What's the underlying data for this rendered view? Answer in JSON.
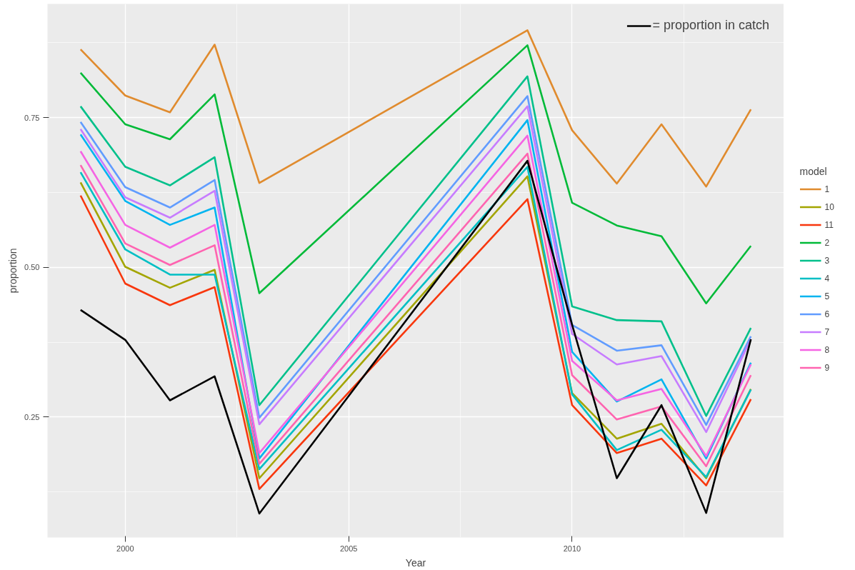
{
  "chart_data": {
    "type": "line",
    "xlabel": "Year",
    "ylabel": "proportion",
    "legend_title": "model",
    "x": [
      1999,
      2000,
      2001,
      2002,
      2003,
      2009,
      2010,
      2011,
      2012,
      2013,
      2014
    ],
    "xlim": [
      1998.26,
      2014.74
    ],
    "xticks": [
      2000,
      2005,
      2010
    ],
    "ylim": [
      0.049,
      0.94
    ],
    "yticks": [
      {
        "value": 0.25,
        "label": "0.25"
      },
      {
        "value": 0.5,
        "label": "0.50"
      },
      {
        "value": 0.75,
        "label": "0.75"
      }
    ],
    "annotations": [
      "= proportion in catch"
    ],
    "grid": true,
    "legend": "right",
    "marker": "none",
    "line_style": "solid",
    "series": [
      {
        "name": "1",
        "color": "#e08b2e",
        "values": [
          0.864,
          0.787,
          0.759,
          0.872,
          0.641,
          0.896,
          0.729,
          0.64,
          0.739,
          0.635,
          0.764
        ]
      },
      {
        "name": "10",
        "color": "#a3a500",
        "values": [
          0.642,
          0.501,
          0.466,
          0.496,
          0.148,
          0.652,
          0.29,
          0.214,
          0.239,
          0.148,
          0.297
        ]
      },
      {
        "name": "11",
        "color": "#f8370d",
        "values": [
          0.62,
          0.473,
          0.437,
          0.467,
          0.13,
          0.614,
          0.27,
          0.19,
          0.214,
          0.136,
          0.28
        ]
      },
      {
        "name": "2",
        "color": "#00ba38",
        "values": [
          0.825,
          0.739,
          0.714,
          0.789,
          0.457,
          0.871,
          0.608,
          0.57,
          0.552,
          0.44,
          0.536
        ]
      },
      {
        "name": "3",
        "color": "#00c08b",
        "values": [
          0.769,
          0.668,
          0.637,
          0.684,
          0.27,
          0.819,
          0.435,
          0.412,
          0.41,
          0.252,
          0.399
        ]
      },
      {
        "name": "4",
        "color": "#00bfc4",
        "values": [
          0.659,
          0.53,
          0.488,
          0.488,
          0.163,
          0.668,
          0.288,
          0.195,
          0.229,
          0.15,
          0.296
        ]
      },
      {
        "name": "5",
        "color": "#00b4f0",
        "values": [
          0.722,
          0.611,
          0.571,
          0.6,
          0.181,
          0.746,
          0.359,
          0.276,
          0.313,
          0.181,
          0.341
        ]
      },
      {
        "name": "6",
        "color": "#619cff",
        "values": [
          0.743,
          0.634,
          0.6,
          0.646,
          0.249,
          0.786,
          0.404,
          0.361,
          0.37,
          0.237,
          0.385
        ]
      },
      {
        "name": "7",
        "color": "#c77cff",
        "values": [
          0.731,
          0.617,
          0.583,
          0.628,
          0.238,
          0.769,
          0.389,
          0.338,
          0.352,
          0.225,
          0.38
        ]
      },
      {
        "name": "8",
        "color": "#f564e3",
        "values": [
          0.694,
          0.571,
          0.533,
          0.571,
          0.19,
          0.72,
          0.344,
          0.278,
          0.297,
          0.185,
          0.338
        ]
      },
      {
        "name": "9",
        "color": "#ff64b0",
        "values": [
          0.671,
          0.54,
          0.504,
          0.537,
          0.172,
          0.69,
          0.32,
          0.246,
          0.268,
          0.168,
          0.32
        ]
      },
      {
        "color": "#000000",
        "values": [
          0.429,
          0.379,
          0.278,
          0.318,
          0.089,
          0.678,
          0.404,
          0.148,
          0.27,
          0.09,
          0.38
        ]
      }
    ]
  }
}
